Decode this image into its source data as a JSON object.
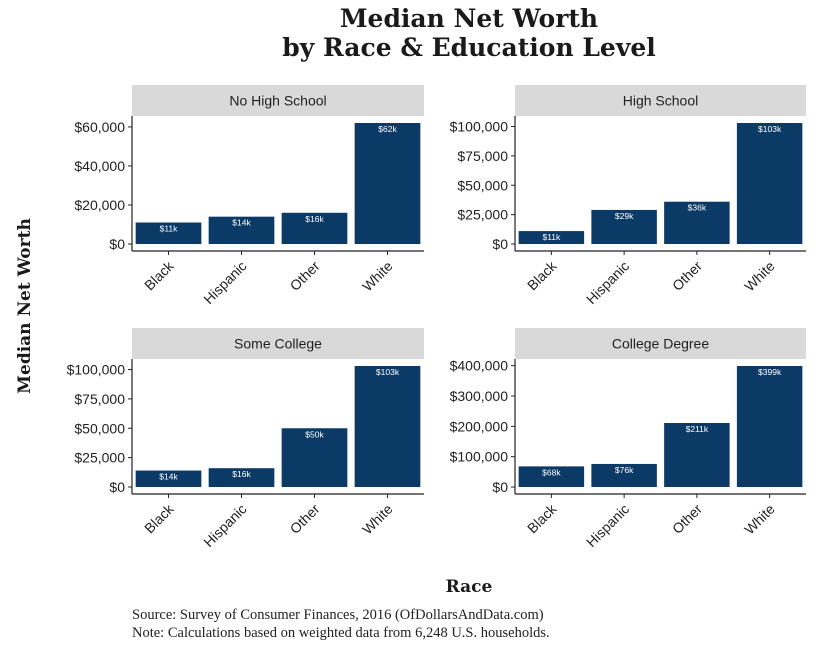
{
  "chart_title_line1": "Median Net Worth",
  "chart_title_line2": "by Race & Education Level",
  "xlabel": "Race",
  "ylabel": "Median Net Worth",
  "caption_line1": "Source:  Survey of Consumer Finances, 2016 (OfDollarsAndData.com)",
  "caption_line2": "Note: Calculations based on weighted data from 6,248 U.S. households.",
  "colors": {
    "bar": "#0b3a66",
    "strip": "#d9d9d9"
  },
  "chart_data": [
    {
      "type": "bar",
      "title": "No High School",
      "categories": [
        "Black",
        "Hispanic",
        "Other",
        "White"
      ],
      "values": [
        11000,
        14000,
        16000,
        62000
      ],
      "labels": [
        "$11k",
        "$14k",
        "$16k",
        "$62k"
      ],
      "ylim": [
        0,
        62000
      ],
      "yticks": [
        0,
        20000,
        40000,
        60000
      ],
      "ytick_labels": [
        "$0",
        "$20,000",
        "$40,000",
        "$60,000"
      ]
    },
    {
      "type": "bar",
      "title": "High School",
      "categories": [
        "Black",
        "Hispanic",
        "Other",
        "White"
      ],
      "values": [
        11000,
        29000,
        36000,
        103000
      ],
      "labels": [
        "$11k",
        "$29k",
        "$36k",
        "$103k"
      ],
      "ylim": [
        0,
        103000
      ],
      "yticks": [
        0,
        25000,
        50000,
        75000,
        100000
      ],
      "ytick_labels": [
        "$0",
        "$25,000",
        "$50,000",
        "$75,000",
        "$100,000"
      ]
    },
    {
      "type": "bar",
      "title": "Some College",
      "categories": [
        "Black",
        "Hispanic",
        "Other",
        "White"
      ],
      "values": [
        14000,
        16000,
        50000,
        103000
      ],
      "labels": [
        "$14k",
        "$16k",
        "$50k",
        "$103k"
      ],
      "ylim": [
        0,
        103000
      ],
      "yticks": [
        0,
        25000,
        50000,
        75000,
        100000
      ],
      "ytick_labels": [
        "$0",
        "$25,000",
        "$50,000",
        "$75,000",
        "$100,000"
      ]
    },
    {
      "type": "bar",
      "title": "College Degree",
      "categories": [
        "Black",
        "Hispanic",
        "Other",
        "White"
      ],
      "values": [
        68000,
        76000,
        211000,
        399000
      ],
      "labels": [
        "$68k",
        "$76k",
        "$211k",
        "$399k"
      ],
      "ylim": [
        0,
        399000
      ],
      "yticks": [
        0,
        100000,
        200000,
        300000,
        400000
      ],
      "ytick_labels": [
        "$0",
        "$100,000",
        "$200,000",
        "$300,000",
        "$400,000"
      ]
    }
  ]
}
